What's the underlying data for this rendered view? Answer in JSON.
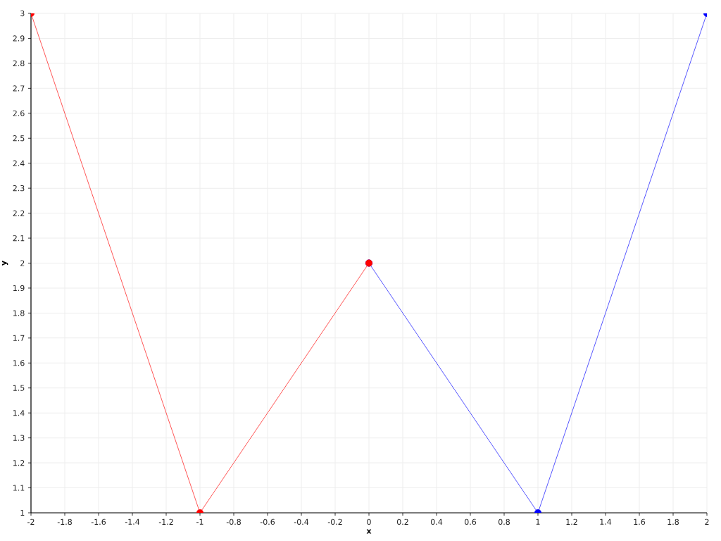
{
  "chart_data": {
    "type": "line",
    "xlabel": "x",
    "ylabel": "y",
    "series": [
      {
        "color": "#ff0000",
        "x": [
          -2,
          -1,
          0
        ],
        "values": [
          3,
          1,
          2
        ]
      },
      {
        "color": "#0000ff",
        "x": [
          0,
          1,
          2
        ],
        "values": [
          2,
          1,
          3
        ]
      }
    ],
    "xlim": [
      -2,
      2
    ],
    "ylim": [
      1,
      3
    ],
    "xticks": [
      -2,
      -1.8,
      -1.6,
      -1.4,
      -1.2,
      -1,
      -0.8,
      -0.6,
      -0.4,
      -0.2,
      0,
      0.2,
      0.4,
      0.6,
      0.8,
      1,
      1.2,
      1.4,
      1.6,
      1.8,
      2
    ],
    "yticks": [
      1,
      1.1,
      1.2,
      1.3,
      1.4,
      1.5,
      1.6,
      1.7,
      1.8,
      1.9,
      2,
      2.1,
      2.2,
      2.3,
      2.4,
      2.5,
      2.6,
      2.7,
      2.8,
      2.9,
      3
    ],
    "grid": true,
    "marker": "circle",
    "line_style": "solid"
  }
}
